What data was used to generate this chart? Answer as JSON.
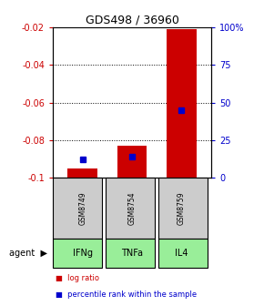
{
  "title": "GDS498 / 36960",
  "samples": [
    "GSM8749",
    "GSM8754",
    "GSM8759"
  ],
  "agents": [
    "IFNg",
    "TNFa",
    "IL4"
  ],
  "log_ratios": [
    -0.095,
    -0.083,
    -0.021
  ],
  "log_ratio_baseline": -0.1,
  "percentile_ranks": [
    0.12,
    0.14,
    0.45
  ],
  "ylim_left": [
    -0.1,
    -0.02
  ],
  "ylim_right": [
    0.0,
    1.0
  ],
  "yticks_left": [
    -0.1,
    -0.08,
    -0.06,
    -0.04,
    -0.02
  ],
  "ytick_labels_left": [
    "-0.1",
    "-0.08",
    "-0.06",
    "-0.04",
    "-0.02"
  ],
  "yticks_right": [
    0.0,
    0.25,
    0.5,
    0.75,
    1.0
  ],
  "ytick_labels_right": [
    "0",
    "25",
    "50",
    "75",
    "100%"
  ],
  "bar_color": "#cc0000",
  "blue_color": "#0000cc",
  "left_tick_color": "#cc0000",
  "right_tick_color": "#0000cc",
  "sample_box_color": "#cccccc",
  "agent_box_color": "#99ee99",
  "legend_log_label": "log ratio",
  "legend_pct_label": "percentile rank within the sample",
  "bar_width": 0.6,
  "title_fontsize": 9
}
